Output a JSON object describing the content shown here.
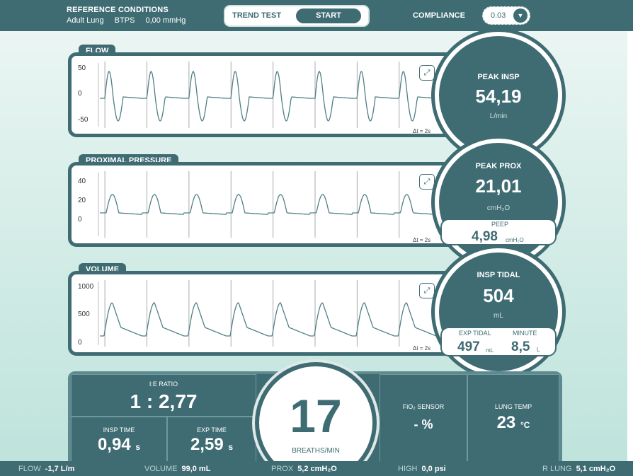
{
  "header": {
    "ref_title": "REFERENCE CONDITIONS",
    "ref_lung": "Adult Lung",
    "ref_btps": "BTPS",
    "ref_pressure": "0,00 mmHg",
    "trend_label": "TREND TEST",
    "start_label": "START",
    "compliance_label": "COMPLIANCE",
    "compliance_value": "0.03"
  },
  "flow": {
    "tab": "FLOW",
    "y_ticks": [
      "50",
      "0",
      "-50"
    ],
    "dt": "Δt = 2s",
    "title": "PEAK INSP",
    "value": "54,19",
    "unit": "L/min"
  },
  "pressure": {
    "tab": "PROXIMAL PRESSURE",
    "y_ticks": [
      "40",
      "20",
      "0"
    ],
    "dt": "Δt = 2s",
    "title": "PEAK PROX",
    "value": "21,01",
    "unit": "cmH₂O",
    "peep_title": "PEEP",
    "peep_value": "4,98",
    "peep_unit": "cmH₂O"
  },
  "volume": {
    "tab": "VOLUME",
    "y_ticks": [
      "1000",
      "500",
      "0"
    ],
    "dt": "Δt = 2s",
    "title": "INSP TIDAL",
    "value": "504",
    "unit": "mL",
    "exp_title": "EXP TIDAL",
    "exp_value": "497",
    "exp_unit": "mL",
    "minute_title": "MINUTE",
    "minute_value": "8,5",
    "minute_unit": "L"
  },
  "bottom": {
    "ie_title": "I:E RATIO",
    "ie_value": "1 : 2,77",
    "insp_title": "INSP TIME",
    "insp_value": "0,94",
    "insp_unit": "s",
    "exp_title": "EXP TIME",
    "exp_value": "2,59",
    "exp_unit": "s",
    "rate_value": "17",
    "rate_unit": "BREATHS/MIN",
    "fio2_title": "FiO₂ SENSOR",
    "fio2_value": "- %",
    "temp_title": "LUNG TEMP",
    "temp_value": "23",
    "temp_unit": "°C"
  },
  "status": {
    "flow_label": "FLOW",
    "flow_value": "-1,7 L/m",
    "volume_label": "VOLUME",
    "volume_value": "99,0 mL",
    "prox_label": "PROX",
    "prox_value": "5,2 cmH₂O",
    "high_label": "HIGH",
    "high_value": "0,0 psi",
    "rlung_label": "R LUNG",
    "rlung_value": "5,1 cmH₂O"
  },
  "colors": {
    "primary": "#3f6c73",
    "trace": "#4f7f85"
  }
}
